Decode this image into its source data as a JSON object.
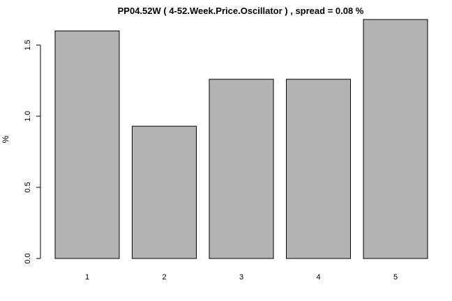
{
  "chart_data": {
    "type": "bar",
    "title": "PP04.52W ( 4-52.Week.Price.Oscillator ) , spread = 0.08 %",
    "xlabel": "",
    "ylabel": "%",
    "categories": [
      "1",
      "2",
      "3",
      "4",
      "5"
    ],
    "values": [
      1.6,
      0.93,
      1.26,
      1.26,
      1.68
    ],
    "ylim": [
      0,
      1.68
    ],
    "yticks": [
      "0.0",
      "0.5",
      "1.0",
      "1.5"
    ],
    "grid": false,
    "legend": "none",
    "colors": {
      "bar_fill": "#b3b3b3",
      "bar_stroke": "#000000"
    }
  }
}
